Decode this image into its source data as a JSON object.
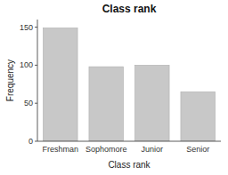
{
  "chart_data": {
    "type": "bar",
    "title": "Class rank",
    "xlabel": "Class rank",
    "ylabel": "Frequency",
    "categories": [
      "Freshman",
      "Sophomore",
      "Junior",
      "Senior"
    ],
    "values": [
      149,
      98,
      100,
      65
    ],
    "color": "#c8c8c8",
    "ylim": [
      0,
      160
    ],
    "yticks": [
      0,
      50,
      100,
      150
    ],
    "grid": false
  }
}
